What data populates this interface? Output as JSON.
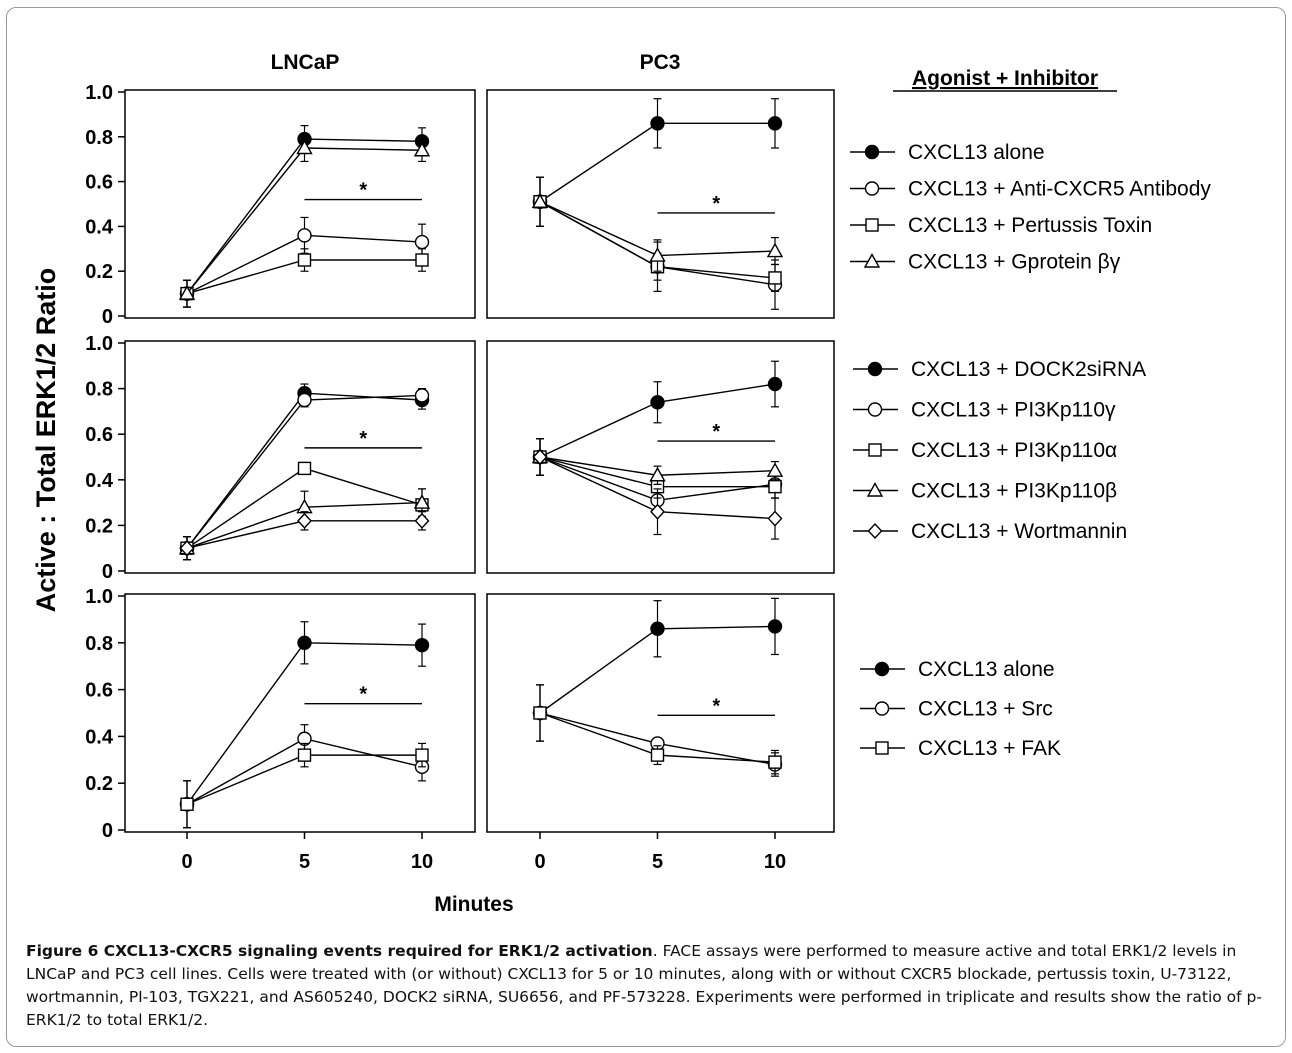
{
  "figure": {
    "column_titles": [
      "LNCaP",
      "PC3"
    ],
    "legend_heading": "Agonist + Inhibitor",
    "ylabel": "Active : Total ERK1/2 Ratio",
    "xlabel": "Minutes",
    "significance_marker": "*"
  },
  "chart_data": [
    {
      "type": "line",
      "cell_line": "LNCaP",
      "row": 1,
      "x": [
        0,
        5,
        10
      ],
      "xlim": [
        -1,
        11
      ],
      "ylim": [
        0,
        1.0
      ],
      "yticks": [
        "0",
        "0.2",
        "0.4",
        "0.6",
        "0.8",
        "1.0"
      ],
      "series": [
        {
          "name": "CXCL13 alone",
          "marker": "filled-circle",
          "values": [
            0.1,
            0.79,
            0.78
          ],
          "errors": [
            0.06,
            0.06,
            0.06
          ]
        },
        {
          "name": "CXCL13 + Anti-CXCR5 Antibody",
          "marker": "open-circle",
          "values": [
            0.1,
            0.36,
            0.33
          ],
          "errors": [
            0.06,
            0.08,
            0.08
          ]
        },
        {
          "name": "CXCL13 + Pertussis Toxin",
          "marker": "open-square",
          "values": [
            0.1,
            0.25,
            0.25
          ],
          "errors": [
            0.06,
            0.05,
            0.05
          ]
        },
        {
          "name": "CXCL13 + Gprotein βγ",
          "marker": "open-triangle",
          "values": [
            0.1,
            0.75,
            0.74
          ],
          "errors": [
            0.06,
            0.06,
            0.05
          ]
        }
      ],
      "significance": {
        "x": [
          5,
          10
        ],
        "y": 0.52
      }
    },
    {
      "type": "line",
      "cell_line": "PC3",
      "row": 1,
      "x": [
        0,
        5,
        10
      ],
      "xlim": [
        -1,
        11
      ],
      "ylim": [
        0,
        1.0
      ],
      "series": [
        {
          "name": "CXCL13 alone",
          "marker": "filled-circle",
          "values": [
            0.51,
            0.86,
            0.86
          ],
          "errors": [
            0.11,
            0.11,
            0.11
          ]
        },
        {
          "name": "CXCL13 + Anti-CXCR5 Antibody",
          "marker": "open-circle",
          "values": [
            0.51,
            0.22,
            0.14
          ],
          "errors": [
            0.11,
            0.11,
            0.11
          ]
        },
        {
          "name": "CXCL13 + Pertussis Toxin",
          "marker": "open-square",
          "values": [
            0.51,
            0.22,
            0.17
          ],
          "errors": [
            0.11,
            0.06,
            0.06
          ]
        },
        {
          "name": "CXCL13 + Gprotein βγ",
          "marker": "open-triangle",
          "values": [
            0.51,
            0.27,
            0.29
          ],
          "errors": [
            0.11,
            0.07,
            0.06
          ]
        }
      ],
      "significance": {
        "x": [
          5,
          10
        ],
        "y": 0.46
      }
    },
    {
      "type": "line",
      "cell_line": "LNCaP",
      "row": 2,
      "x": [
        0,
        5,
        10
      ],
      "xlim": [
        -1,
        11
      ],
      "ylim": [
        0,
        1.0
      ],
      "yticks": [
        "0",
        "0.2",
        "0.4",
        "0.6",
        "0.8",
        "1.0"
      ],
      "series": [
        {
          "name": "CXCL13 + DOCK2siRNA",
          "marker": "filled-circle",
          "values": [
            0.1,
            0.78,
            0.75
          ],
          "errors": [
            0.05,
            0.04,
            0.04
          ]
        },
        {
          "name": "CXCL13 + PI3Kp110γ",
          "marker": "open-circle",
          "values": [
            0.1,
            0.75,
            0.77
          ],
          "errors": [
            0.05,
            0.03,
            0.03
          ]
        },
        {
          "name": "CXCL13 + PI3Kp110α",
          "marker": "open-square",
          "values": [
            0.1,
            0.45,
            0.29
          ],
          "errors": [
            0.05,
            0.02,
            0.07
          ]
        },
        {
          "name": "CXCL13 + PI3Kp110β",
          "marker": "open-triangle",
          "values": [
            0.1,
            0.28,
            0.3
          ],
          "errors": [
            0.05,
            0.07,
            0.06
          ]
        },
        {
          "name": "CXCL13 + Wortmannin",
          "marker": "open-diamond",
          "values": [
            0.1,
            0.22,
            0.22
          ],
          "errors": [
            0.05,
            0.04,
            0.04
          ]
        }
      ],
      "significance": {
        "x": [
          5,
          10
        ],
        "y": 0.54
      }
    },
    {
      "type": "line",
      "cell_line": "PC3",
      "row": 2,
      "x": [
        0,
        5,
        10
      ],
      "xlim": [
        -1,
        11
      ],
      "ylim": [
        0,
        1.0
      ],
      "series": [
        {
          "name": "CXCL13 + DOCK2siRNA",
          "marker": "filled-circle",
          "values": [
            0.5,
            0.74,
            0.82
          ],
          "errors": [
            0.08,
            0.09,
            0.1
          ]
        },
        {
          "name": "CXCL13 + PI3Kp110γ",
          "marker": "open-circle",
          "values": [
            0.5,
            0.31,
            0.38
          ],
          "errors": [
            0.08,
            0.06,
            0.06
          ]
        },
        {
          "name": "CXCL13 + PI3Kp110α",
          "marker": "open-square",
          "values": [
            0.5,
            0.37,
            0.37
          ],
          "errors": [
            0.08,
            0.05,
            0.05
          ]
        },
        {
          "name": "CXCL13 + PI3Kp110β",
          "marker": "open-triangle",
          "values": [
            0.5,
            0.42,
            0.44
          ],
          "errors": [
            0.08,
            0.04,
            0.04
          ]
        },
        {
          "name": "CXCL13 + Wortmannin",
          "marker": "open-diamond",
          "values": [
            0.5,
            0.26,
            0.23
          ],
          "errors": [
            0.08,
            0.1,
            0.09
          ]
        }
      ],
      "significance": {
        "x": [
          5,
          10
        ],
        "y": 0.57
      }
    },
    {
      "type": "line",
      "cell_line": "LNCaP",
      "row": 3,
      "x": [
        0,
        5,
        10
      ],
      "xlim": [
        -1,
        11
      ],
      "ylim": [
        0,
        1.0
      ],
      "yticks": [
        "0",
        "0.2",
        "0.4",
        "0.6",
        "0.8",
        "1.0"
      ],
      "xticks": [
        "0",
        "5",
        "10"
      ],
      "series": [
        {
          "name": "CXCL13 alone",
          "marker": "filled-circle",
          "values": [
            0.11,
            0.8,
            0.79
          ],
          "errors": [
            0.1,
            0.09,
            0.09
          ]
        },
        {
          "name": "CXCL13 + Src",
          "marker": "open-circle",
          "values": [
            0.11,
            0.39,
            0.27
          ],
          "errors": [
            0.1,
            0.06,
            0.06
          ]
        },
        {
          "name": "CXCL13 + FAK",
          "marker": "open-square",
          "values": [
            0.11,
            0.32,
            0.32
          ],
          "errors": [
            0.1,
            0.05,
            0.05
          ]
        }
      ],
      "significance": {
        "x": [
          5,
          10
        ],
        "y": 0.54
      }
    },
    {
      "type": "line",
      "cell_line": "PC3",
      "row": 3,
      "x": [
        0,
        5,
        10
      ],
      "xlim": [
        -1,
        11
      ],
      "ylim": [
        0,
        1.0
      ],
      "xticks": [
        "0",
        "5",
        "10"
      ],
      "series": [
        {
          "name": "CXCL13 alone",
          "marker": "filled-circle",
          "values": [
            0.5,
            0.86,
            0.87
          ],
          "errors": [
            0.12,
            0.12,
            0.12
          ]
        },
        {
          "name": "CXCL13 + Src",
          "marker": "open-circle",
          "values": [
            0.5,
            0.37,
            0.28
          ],
          "errors": [
            0.12,
            0.02,
            0.05
          ]
        },
        {
          "name": "CXCL13 + FAK",
          "marker": "open-square",
          "values": [
            0.5,
            0.32,
            0.29
          ],
          "errors": [
            0.12,
            0.04,
            0.05
          ]
        }
      ],
      "significance": {
        "x": [
          5,
          10
        ],
        "y": 0.49
      }
    }
  ],
  "legends": [
    {
      "row": 1,
      "items": [
        {
          "label": "CXCL13 alone",
          "marker": "filled-circle"
        },
        {
          "label": "CXCL13 + Anti-CXCR5 Antibody",
          "marker": "open-circle"
        },
        {
          "label": "CXCL13 + Pertussis Toxin",
          "marker": "open-square"
        },
        {
          "label": "CXCL13 + Gprotein βγ",
          "marker": "open-triangle"
        }
      ]
    },
    {
      "row": 2,
      "items": [
        {
          "label": "CXCL13 + DOCK2siRNA",
          "marker": "filled-circle"
        },
        {
          "label": "CXCL13 + PI3Kp110γ",
          "marker": "open-circle"
        },
        {
          "label": "CXCL13 + PI3Kp110α",
          "marker": "open-square"
        },
        {
          "label": "CXCL13 + PI3Kp110β",
          "marker": "open-triangle"
        },
        {
          "label": "CXCL13 + Wortmannin",
          "marker": "open-diamond"
        }
      ]
    },
    {
      "row": 3,
      "items": [
        {
          "label": "CXCL13 alone",
          "marker": "filled-circle"
        },
        {
          "label": "CXCL13 + Src",
          "marker": "open-circle"
        },
        {
          "label": "CXCL13 + FAK",
          "marker": "open-square"
        }
      ]
    }
  ],
  "caption": {
    "lead": "Figure 6 CXCL13-CXCR5 signaling events required for ERK1/2 activation",
    "body": ". FACE assays were performed to measure active and total ERK1/2 levels in LNCaP and PC3 cell lines. Cells were treated with (or without) CXCL13 for 5 or 10 minutes, along with or without CXCR5 blockade, pertussis toxin, U-73122, wortmannin, PI-103, TGX221, and AS605240, DOCK2 siRNA, SU6656, and PF-573228. Experiments were performed in triplicate and results show the ratio of p-ERK1/2 to total ERK1/2."
  }
}
